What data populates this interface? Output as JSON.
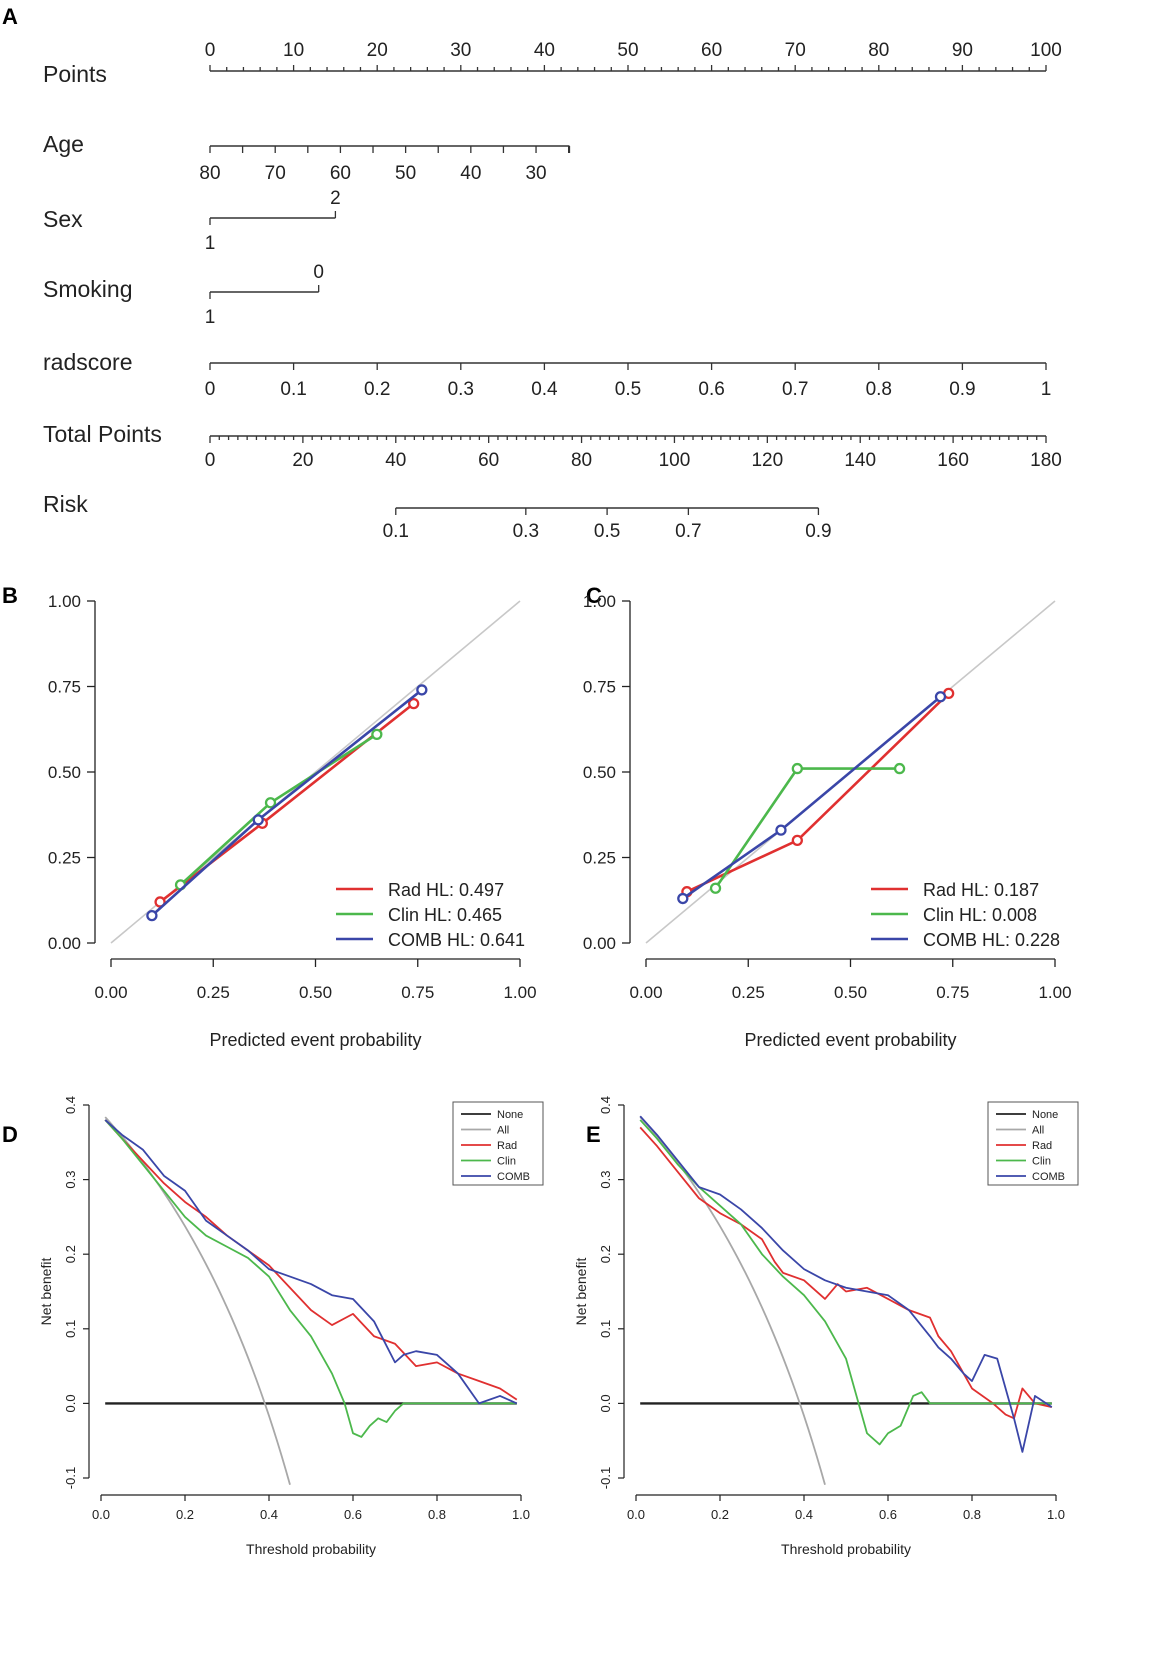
{
  "panel_letters": [
    "A",
    "B",
    "C",
    "D",
    "E"
  ],
  "colors": {
    "Rad": "#e03030",
    "Clin": "#4cb84c",
    "COMB": "#3a46a8",
    "None": "#222222",
    "All": "#a8a8a8",
    "diagonal": "#c8c8c8",
    "axis": "#222222"
  },
  "chart_data": [
    {
      "panel": "A",
      "type": "nomogram",
      "rows": [
        {
          "label": "Points",
          "tick_labels": [
            "0",
            "10",
            "20",
            "30",
            "40",
            "50",
            "60",
            "70",
            "80",
            "90",
            "100"
          ],
          "range": [
            0,
            100
          ]
        },
        {
          "label": "Age",
          "tick_labels": [
            "80",
            "70",
            "60",
            "50",
            "40",
            "30"
          ],
          "values": [
            80,
            70,
            60,
            50,
            40,
            30
          ],
          "points": [
            0,
            7.8,
            15.6,
            23.4,
            31.2,
            39.0
          ],
          "axis_end_points": 43
        },
        {
          "label": "Sex",
          "levels": [
            {
              "label": "1",
              "points": 0
            },
            {
              "label": "2",
              "points": 15
            }
          ]
        },
        {
          "label": "Smoking",
          "levels": [
            {
              "label": "1",
              "points": 0
            },
            {
              "label": "0",
              "points": 13
            }
          ]
        },
        {
          "label": "radscore",
          "tick_labels": [
            "0",
            "0.1",
            "0.2",
            "0.3",
            "0.4",
            "0.5",
            "0.6",
            "0.7",
            "0.8",
            "0.9",
            "1"
          ],
          "range": [
            0,
            1
          ]
        },
        {
          "label": "Total Points",
          "tick_labels": [
            "0",
            "20",
            "40",
            "60",
            "80",
            "100",
            "120",
            "140",
            "160",
            "180"
          ],
          "range": [
            0,
            180
          ]
        },
        {
          "label": "Risk",
          "tick_labels": [
            "0.1",
            "0.3",
            "0.5",
            "0.7",
            "0.9"
          ],
          "values": [
            0.1,
            0.3,
            0.5,
            0.7,
            0.9
          ],
          "total_points": [
            40,
            68,
            85.5,
            103,
            131
          ]
        }
      ]
    },
    {
      "panel": "B",
      "type": "calibration",
      "xlabel": "Predicted event probability",
      "xlim": [
        0,
        1
      ],
      "ylim": [
        0,
        1
      ],
      "tick_labels": [
        "0.00",
        "0.25",
        "0.50",
        "0.75",
        "1.00"
      ],
      "series": [
        {
          "name": "Rad",
          "legend": "Rad HL: 0.497",
          "points": [
            [
              0.12,
              0.12
            ],
            [
              0.37,
              0.35
            ],
            [
              0.74,
              0.7
            ]
          ]
        },
        {
          "name": "Clin",
          "legend": "Clin HL: 0.465",
          "points": [
            [
              0.17,
              0.17
            ],
            [
              0.39,
              0.41
            ],
            [
              0.65,
              0.61
            ]
          ]
        },
        {
          "name": "COMB",
          "legend": "COMB HL: 0.641",
          "points": [
            [
              0.1,
              0.08
            ],
            [
              0.36,
              0.36
            ],
            [
              0.76,
              0.74
            ]
          ]
        }
      ]
    },
    {
      "panel": "C",
      "type": "calibration",
      "xlabel": "Predicted event probability",
      "xlim": [
        0,
        1
      ],
      "ylim": [
        0,
        1
      ],
      "tick_labels": [
        "0.00",
        "0.25",
        "0.50",
        "0.75",
        "1.00"
      ],
      "series": [
        {
          "name": "Rad",
          "legend": "Rad HL: 0.187",
          "points": [
            [
              0.1,
              0.15
            ],
            [
              0.37,
              0.3
            ],
            [
              0.74,
              0.73
            ]
          ]
        },
        {
          "name": "Clin",
          "legend": "Clin HL: 0.008",
          "points": [
            [
              0.17,
              0.16
            ],
            [
              0.37,
              0.51
            ],
            [
              0.62,
              0.51
            ]
          ]
        },
        {
          "name": "COMB",
          "legend": "COMB HL: 0.228",
          "points": [
            [
              0.09,
              0.13
            ],
            [
              0.33,
              0.33
            ],
            [
              0.72,
              0.72
            ]
          ]
        }
      ]
    },
    {
      "panel": "D",
      "type": "line",
      "xlabel": "Threshold probability",
      "ylabel": "Net benefit",
      "xlim": [
        0,
        1
      ],
      "ylim": [
        -0.1,
        0.4
      ],
      "x_tick_labels": [
        "0.0",
        "0.2",
        "0.4",
        "0.6",
        "0.8",
        "1.0"
      ],
      "y_tick_labels": [
        "-0.1",
        "0.0",
        "0.1",
        "0.2",
        "0.3",
        "0.4"
      ],
      "legend": [
        "None",
        "All",
        "Rad",
        "Clin",
        "COMB"
      ],
      "series": [
        {
          "name": "None",
          "x": [
            0.01,
            0.99
          ],
          "y": [
            0,
            0
          ]
        },
        {
          "name": "All",
          "prevalence": 0.39
        },
        {
          "name": "Rad",
          "x": [
            0.01,
            0.05,
            0.1,
            0.15,
            0.2,
            0.25,
            0.3,
            0.35,
            0.4,
            0.45,
            0.5,
            0.55,
            0.6,
            0.65,
            0.7,
            0.75,
            0.8,
            0.85,
            0.9,
            0.95,
            0.99
          ],
          "y": [
            0.38,
            0.355,
            0.325,
            0.295,
            0.27,
            0.25,
            0.225,
            0.205,
            0.185,
            0.155,
            0.125,
            0.105,
            0.12,
            0.09,
            0.08,
            0.05,
            0.055,
            0.04,
            0.03,
            0.02,
            0.005
          ]
        },
        {
          "name": "Clin",
          "x": [
            0.01,
            0.05,
            0.1,
            0.15,
            0.2,
            0.25,
            0.3,
            0.35,
            0.4,
            0.45,
            0.5,
            0.55,
            0.58,
            0.6,
            0.62,
            0.64,
            0.66,
            0.68,
            0.7,
            0.72,
            0.75,
            0.99
          ],
          "y": [
            0.38,
            0.355,
            0.32,
            0.285,
            0.25,
            0.225,
            0.21,
            0.195,
            0.17,
            0.125,
            0.09,
            0.04,
            0.0,
            -0.04,
            -0.045,
            -0.03,
            -0.02,
            -0.025,
            -0.01,
            0.0,
            0,
            0
          ]
        },
        {
          "name": "COMB",
          "x": [
            0.01,
            0.05,
            0.1,
            0.15,
            0.2,
            0.25,
            0.3,
            0.35,
            0.4,
            0.45,
            0.5,
            0.55,
            0.6,
            0.65,
            0.7,
            0.72,
            0.75,
            0.8,
            0.85,
            0.9,
            0.95,
            0.99
          ],
          "y": [
            0.38,
            0.36,
            0.34,
            0.305,
            0.285,
            0.245,
            0.225,
            0.205,
            0.18,
            0.17,
            0.16,
            0.145,
            0.14,
            0.11,
            0.055,
            0.065,
            0.07,
            0.065,
            0.04,
            0.0,
            0.01,
            0.0
          ]
        }
      ]
    },
    {
      "panel": "E",
      "type": "line",
      "xlabel": "Threshold probability",
      "ylabel": "Net benefit",
      "xlim": [
        0,
        1
      ],
      "ylim": [
        -0.1,
        0.4
      ],
      "x_tick_labels": [
        "0.0",
        "0.2",
        "0.4",
        "0.6",
        "0.8",
        "1.0"
      ],
      "y_tick_labels": [
        "-0.1",
        "0.0",
        "0.1",
        "0.2",
        "0.3",
        "0.4"
      ],
      "legend": [
        "None",
        "All",
        "Rad",
        "Clin",
        "COMB"
      ],
      "series": [
        {
          "name": "None",
          "x": [
            0.01,
            0.99
          ],
          "y": [
            0,
            0
          ]
        },
        {
          "name": "All",
          "prevalence": 0.39
        },
        {
          "name": "Rad",
          "x": [
            0.01,
            0.05,
            0.1,
            0.15,
            0.2,
            0.25,
            0.3,
            0.33,
            0.35,
            0.4,
            0.45,
            0.48,
            0.5,
            0.55,
            0.6,
            0.65,
            0.7,
            0.72,
            0.75,
            0.8,
            0.85,
            0.88,
            0.9,
            0.92,
            0.95,
            0.99
          ],
          "y": [
            0.37,
            0.345,
            0.31,
            0.275,
            0.255,
            0.24,
            0.22,
            0.19,
            0.175,
            0.165,
            0.14,
            0.16,
            0.15,
            0.155,
            0.14,
            0.125,
            0.115,
            0.09,
            0.07,
            0.02,
            0.0,
            -0.015,
            -0.02,
            0.02,
            0.0,
            -0.005
          ]
        },
        {
          "name": "Clin",
          "x": [
            0.01,
            0.05,
            0.1,
            0.15,
            0.2,
            0.25,
            0.3,
            0.35,
            0.4,
            0.45,
            0.5,
            0.52,
            0.55,
            0.58,
            0.6,
            0.63,
            0.66,
            0.68,
            0.7,
            0.99
          ],
          "y": [
            0.38,
            0.355,
            0.32,
            0.29,
            0.265,
            0.24,
            0.2,
            0.17,
            0.145,
            0.11,
            0.06,
            0.02,
            -0.04,
            -0.055,
            -0.04,
            -0.03,
            0.01,
            0.015,
            0.0,
            0
          ]
        },
        {
          "name": "COMB",
          "x": [
            0.01,
            0.05,
            0.1,
            0.15,
            0.2,
            0.25,
            0.3,
            0.35,
            0.4,
            0.45,
            0.5,
            0.55,
            0.6,
            0.65,
            0.7,
            0.72,
            0.75,
            0.78,
            0.8,
            0.83,
            0.86,
            0.9,
            0.92,
            0.95,
            0.99
          ],
          "y": [
            0.385,
            0.36,
            0.325,
            0.29,
            0.28,
            0.26,
            0.235,
            0.205,
            0.18,
            0.165,
            0.155,
            0.15,
            0.145,
            0.125,
            0.09,
            0.075,
            0.06,
            0.04,
            0.03,
            0.065,
            0.06,
            -0.02,
            -0.065,
            0.01,
            -0.005
          ]
        }
      ]
    }
  ]
}
